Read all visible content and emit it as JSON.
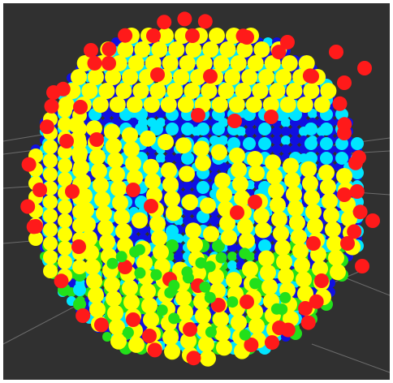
{
  "view": {
    "background_color": "#303030",
    "grid_color": "#6c6c6c",
    "marker_colors": {
      "blue": "#1010e0",
      "cyan": "#00e5ff",
      "green": "#22e01a",
      "yellow": "#ffff00",
      "red": "#ff1a1a"
    },
    "object": "voxel-sphere-marker-cloud"
  }
}
